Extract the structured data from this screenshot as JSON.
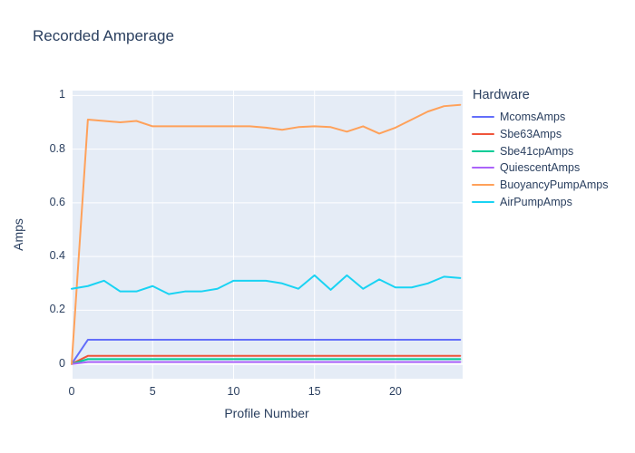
{
  "title": "Recorded Amperage",
  "colors": {
    "paper_bg": "#ffffff",
    "plot_bg": "#e5ecf6",
    "grid": "#ffffff",
    "text": "#2a3f5f"
  },
  "chart_data": {
    "type": "line",
    "title": "Recorded Amperage",
    "xlabel": "Profile Number",
    "ylabel": "Amps",
    "legend_title": "Hardware",
    "legend_position": "right",
    "grid": true,
    "xlim": [
      0,
      24.15
    ],
    "ylim": [
      -0.055,
      1.018
    ],
    "xticks": {
      "values": [
        0,
        5,
        10,
        15,
        20
      ],
      "labels": [
        "0",
        "5",
        "10",
        "15",
        "20"
      ]
    },
    "yticks": {
      "values": [
        0,
        0.2,
        0.4,
        0.6,
        0.8,
        1
      ],
      "labels": [
        "0",
        "0.2",
        "0.4",
        "0.6",
        "0.8",
        "1"
      ]
    },
    "x": [
      0,
      1,
      2,
      3,
      4,
      5,
      6,
      7,
      8,
      9,
      10,
      11,
      12,
      13,
      14,
      15,
      16,
      17,
      18,
      19,
      20,
      21,
      22,
      23,
      24
    ],
    "series": [
      {
        "name": "McomsAmps",
        "color": "#636efa",
        "values": [
          0,
          0.09,
          0.09,
          0.09,
          0.09,
          0.09,
          0.09,
          0.09,
          0.09,
          0.09,
          0.09,
          0.09,
          0.09,
          0.09,
          0.09,
          0.09,
          0.09,
          0.09,
          0.09,
          0.09,
          0.09,
          0.09,
          0.09,
          0.09,
          0.09
        ]
      },
      {
        "name": "Sbe63Amps",
        "color": "#ef553b",
        "values": [
          0,
          0.03,
          0.03,
          0.03,
          0.03,
          0.03,
          0.03,
          0.03,
          0.03,
          0.03,
          0.03,
          0.03,
          0.03,
          0.03,
          0.03,
          0.03,
          0.03,
          0.03,
          0.03,
          0.03,
          0.03,
          0.03,
          0.03,
          0.03,
          0.03
        ]
      },
      {
        "name": "Sbe41cpAmps",
        "color": "#00cc96",
        "values": [
          0,
          0.018,
          0.018,
          0.018,
          0.018,
          0.018,
          0.018,
          0.018,
          0.018,
          0.018,
          0.018,
          0.018,
          0.018,
          0.018,
          0.018,
          0.018,
          0.018,
          0.018,
          0.018,
          0.018,
          0.018,
          0.018,
          0.018,
          0.018,
          0.018
        ]
      },
      {
        "name": "QuiescentAmps",
        "color": "#ab63fa",
        "values": [
          0,
          0.007,
          0.007,
          0.007,
          0.007,
          0.007,
          0.007,
          0.007,
          0.007,
          0.007,
          0.007,
          0.007,
          0.007,
          0.007,
          0.007,
          0.007,
          0.007,
          0.007,
          0.007,
          0.007,
          0.007,
          0.007,
          0.007,
          0.007,
          0.007
        ]
      },
      {
        "name": "BuoyancyPumpAmps",
        "color": "#ffa15a",
        "values": [
          0,
          0.91,
          0.905,
          0.9,
          0.905,
          0.885,
          0.885,
          0.885,
          0.885,
          0.885,
          0.885,
          0.885,
          0.88,
          0.872,
          0.882,
          0.885,
          0.882,
          0.865,
          0.885,
          0.858,
          0.88,
          0.91,
          0.94,
          0.96,
          0.965
        ]
      },
      {
        "name": "AirPumpAmps",
        "color": "#19d3f3",
        "values": [
          0.28,
          0.29,
          0.31,
          0.27,
          0.27,
          0.29,
          0.26,
          0.27,
          0.27,
          0.28,
          0.31,
          0.31,
          0.31,
          0.3,
          0.28,
          0.33,
          0.276,
          0.33,
          0.28,
          0.315,
          0.285,
          0.285,
          0.3,
          0.325,
          0.32
        ]
      }
    ]
  }
}
